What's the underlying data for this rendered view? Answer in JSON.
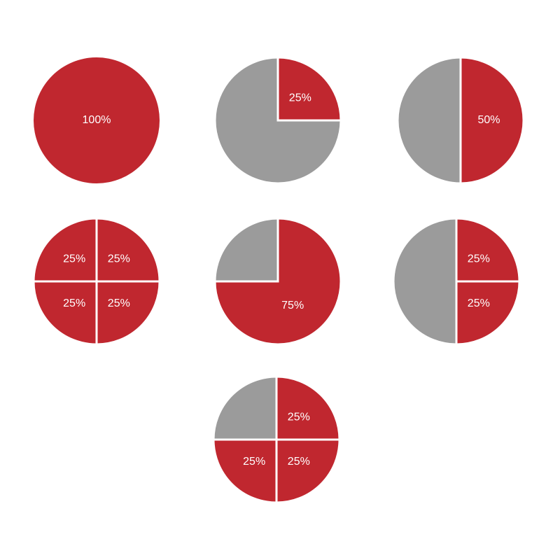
{
  "chart_data": [
    {
      "type": "pie",
      "values": [
        100
      ],
      "value_labels": [
        "100%"
      ],
      "colors": [
        "#c0272f"
      ]
    },
    {
      "type": "pie",
      "values": [
        25,
        75
      ],
      "value_labels": [
        "25%",
        null
      ],
      "colors": [
        "#c0272f",
        "#9b9b9b"
      ]
    },
    {
      "type": "pie",
      "values": [
        50,
        50
      ],
      "value_labels": [
        "50%",
        null
      ],
      "colors": [
        "#c0272f",
        "#9b9b9b"
      ]
    },
    {
      "type": "pie",
      "values": [
        25,
        25,
        25,
        25
      ],
      "value_labels": [
        "25%",
        "25%",
        "25%",
        "25%"
      ],
      "colors": [
        "#c0272f",
        "#c0272f",
        "#c0272f",
        "#c0272f"
      ]
    },
    {
      "type": "pie",
      "values": [
        75,
        25
      ],
      "value_labels": [
        "75%",
        null
      ],
      "colors": [
        "#c0272f",
        "#9b9b9b"
      ]
    },
    {
      "type": "pie",
      "values": [
        25,
        25,
        50
      ],
      "value_labels": [
        "25%",
        "25%",
        null
      ],
      "colors": [
        "#c0272f",
        "#c0272f",
        "#9b9b9b"
      ]
    },
    {
      "type": "pie",
      "values": [
        25,
        25,
        25,
        25
      ],
      "value_labels": [
        "25%",
        "25%",
        "25%",
        null
      ],
      "colors": [
        "#c0272f",
        "#c0272f",
        "#c0272f",
        "#9b9b9b"
      ]
    }
  ]
}
